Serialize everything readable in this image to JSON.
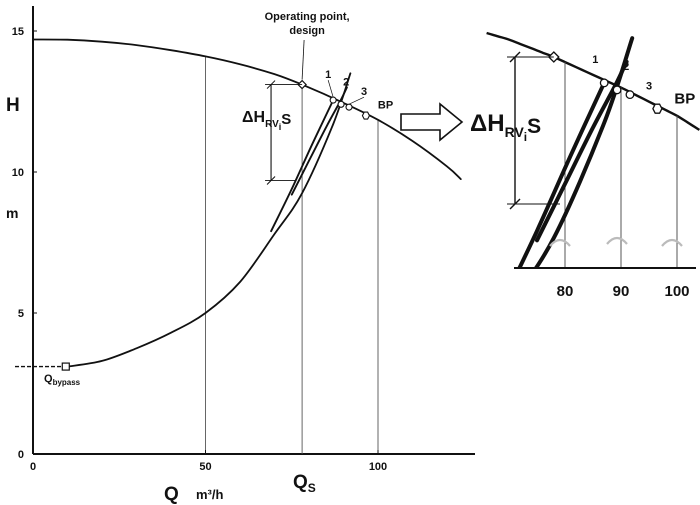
{
  "chart_data": [
    {
      "type": "line",
      "panel": "main",
      "title": "",
      "xlabel": "Q",
      "xunit": "m³/h",
      "ylabel": "H",
      "yunit": "m",
      "xlim": [
        0,
        127
      ],
      "ylim": [
        0,
        15.5
      ],
      "x_ticks": [
        "0",
        "50",
        "100"
      ],
      "y_ticks": [
        "0",
        "5",
        "10",
        "15"
      ],
      "x_gridlines": [
        50,
        78,
        100
      ],
      "grid": false,
      "series": [
        {
          "kind": "pump curve",
          "x": [
            0,
            10,
            20,
            30,
            40,
            50,
            60,
            70,
            78,
            90,
            100,
            110,
            120,
            124
          ],
          "y": [
            14.7,
            14.69,
            14.62,
            14.5,
            14.32,
            14.1,
            13.82,
            13.47,
            13.1,
            12.45,
            11.85,
            11.1,
            10.2,
            9.75
          ]
        },
        {
          "kind": "system curve",
          "x": [
            10,
            20,
            30,
            40,
            50,
            60,
            70,
            78,
            87,
            92
          ],
          "y": [
            3.1,
            3.3,
            3.75,
            4.3,
            5.0,
            6.1,
            7.8,
            9.25,
            11.7,
            13.5
          ]
        },
        {
          "kind": "throttle curve 1",
          "x": [
            69,
            75,
            81,
            87
          ],
          "y": [
            7.9,
            9.4,
            11.0,
            12.55
          ]
        },
        {
          "kind": "throttle curve 2",
          "x": [
            75,
            80,
            85,
            89,
            91
          ],
          "y": [
            9.2,
            10.4,
            11.6,
            12.5,
            13.0
          ]
        }
      ],
      "points": [
        {
          "id": "operating",
          "label_lines": [
            "Operating point,",
            "design"
          ],
          "x": 78,
          "y": 13.1
        },
        {
          "id": "p1",
          "label": "1",
          "x": 87,
          "y": 12.55
        },
        {
          "id": "p2",
          "label": "2",
          "x": 89.3,
          "y": 12.4
        },
        {
          "id": "p3",
          "label": "3",
          "x": 91.6,
          "y": 12.3
        },
        {
          "id": "bp",
          "label": "BP",
          "x": 96.5,
          "y": 12.0
        },
        {
          "id": "bypass",
          "label": "Q",
          "label_sub": "bypass",
          "x": 9.5,
          "y": 3.1
        }
      ],
      "annotations": {
        "delta_h": {
          "symbol": "ΔH",
          "sub": "RV",
          "sub2": "i",
          "suffix": "S",
          "y_top": 13.1,
          "y_bottom": 9.7,
          "x": 69
        },
        "qs": {
          "text": "Q",
          "sub": "S",
          "x": 78
        }
      }
    },
    {
      "type": "line",
      "panel": "inset",
      "title": "",
      "x_ticks": [
        "80",
        "90",
        "100"
      ],
      "xlim": [
        72,
        103
      ],
      "ylim": [
        8.0,
        13.8
      ],
      "points": [
        {
          "id": "p1",
          "label": "1",
          "x": 87,
          "y": 12.55
        },
        {
          "id": "p2",
          "label": "2",
          "x": 89.3,
          "y": 12.4
        },
        {
          "id": "p3",
          "label": "3",
          "x": 91.6,
          "y": 12.3
        },
        {
          "id": "bp",
          "label": "BP",
          "x": 96.5,
          "y": 12.0
        }
      ],
      "annotations": {
        "delta_h": {
          "symbol": "ΔH",
          "sub": "RV",
          "sub2": "i",
          "suffix": "S"
        }
      }
    }
  ]
}
